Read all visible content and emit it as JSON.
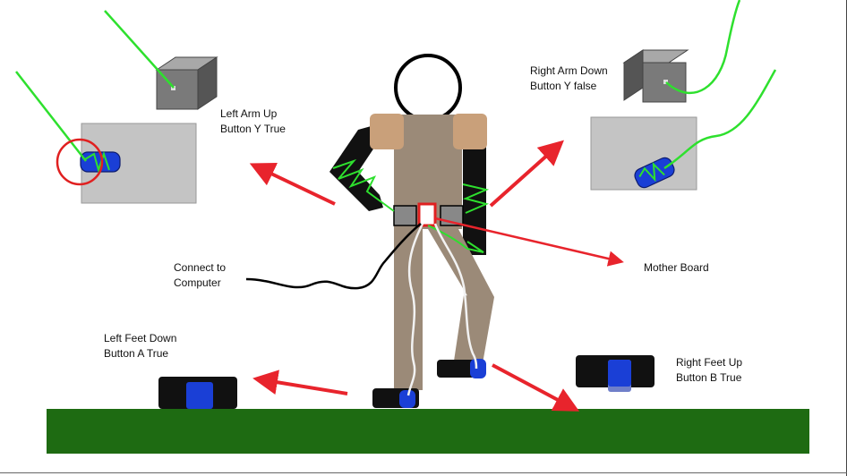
{
  "labels": {
    "left_arm_line1": "Left Arm Up",
    "left_arm_line2": "Button Y True",
    "right_arm_line1": "Right Arm Down",
    "right_arm_line2": "Button Y false",
    "computer_line1": "Connect to",
    "computer_line2": "Computer",
    "mother_board": "Mother Board",
    "left_foot_line1": "Left Feet Down",
    "left_foot_line2": "Button A True",
    "right_foot_line1": "Right Feet Up",
    "right_foot_line2": "Button B True"
  },
  "colors": {
    "ground": "#1e6b12",
    "arrow": "#e8242c",
    "wire_green": "#2ee02e",
    "button_blue": "#1a3fd6",
    "body_tan": "#9b8a78",
    "shoulder": "#c9a07a",
    "plate": "#c4c4c4",
    "box": "#777777"
  },
  "icons": [
    "box-sensor-icon",
    "button-sensor-icon",
    "arrow-icon",
    "cable-icon"
  ]
}
